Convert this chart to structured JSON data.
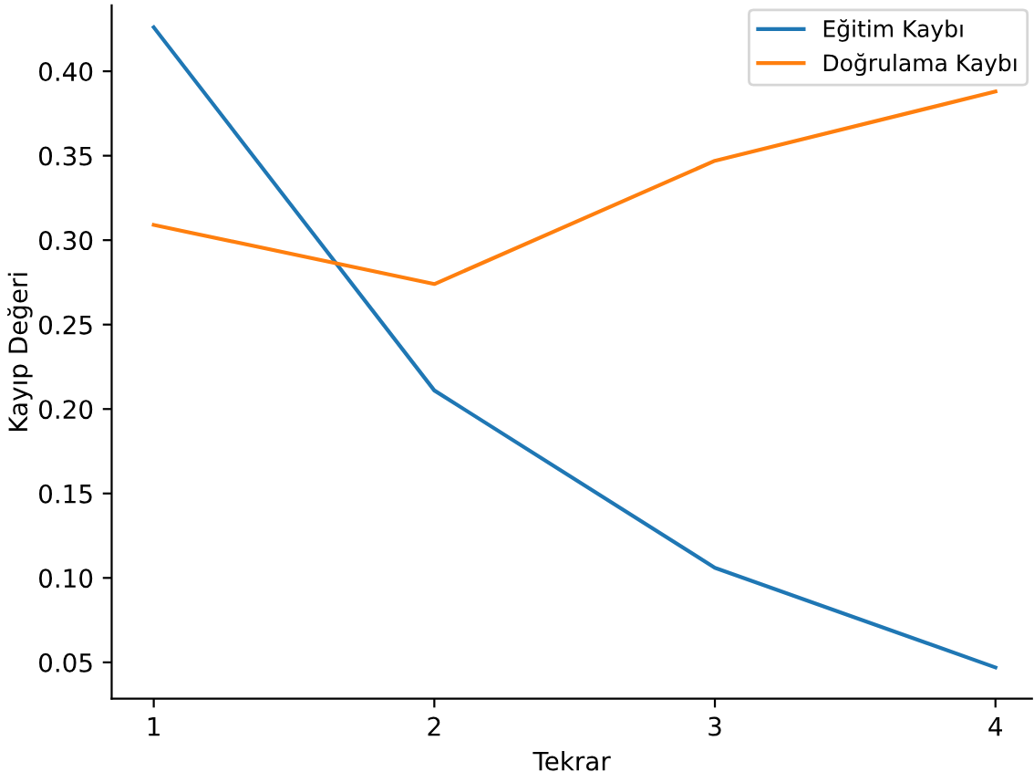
{
  "chart_data": {
    "type": "line",
    "xlabel": "Tekrar",
    "ylabel": "Kayıp Değeri",
    "x": [
      1,
      2,
      3,
      4
    ],
    "series": [
      {
        "name": "Eğitim Kaybı",
        "color": "#1f77b4",
        "values": [
          0.426,
          0.211,
          0.106,
          0.047
        ]
      },
      {
        "name": "Doğrulama Kaybı",
        "color": "#ff7f0e",
        "values": [
          0.309,
          0.274,
          0.347,
          0.388
        ]
      }
    ],
    "xlim": [
      0.85,
      4.13
    ],
    "ylim": [
      0.0285,
      0.439
    ],
    "xticks": [
      1,
      2,
      3,
      4
    ],
    "yticks": [
      {
        "value": 0.05,
        "label": "0.05"
      },
      {
        "value": 0.1,
        "label": "0.10"
      },
      {
        "value": 0.15,
        "label": "0.15"
      },
      {
        "value": 0.2,
        "label": "0.20"
      },
      {
        "value": 0.25,
        "label": "0.25"
      },
      {
        "value": 0.3,
        "label": "0.30"
      },
      {
        "value": 0.35,
        "label": "0.35"
      },
      {
        "value": 0.4,
        "label": "0.40"
      }
    ],
    "legend": "top right",
    "grid": false,
    "marker": "none",
    "line_style": "solid"
  }
}
